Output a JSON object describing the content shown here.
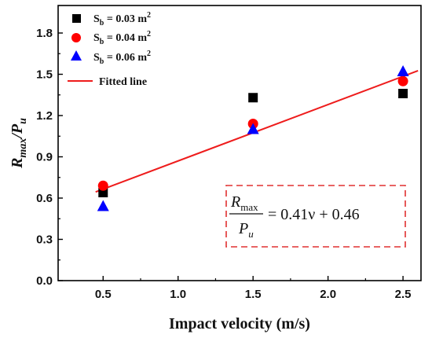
{
  "chart_data": {
    "type": "scatter",
    "xlabel": "Impact velocity (m/s)",
    "ylabel": {
      "main": "R",
      "sub1": "max",
      "slash": "/P",
      "sub2": "u"
    },
    "xlim": [
      0.2,
      2.62
    ],
    "ylim": [
      0.0,
      2.0
    ],
    "x_ticks": [
      0.5,
      1.0,
      1.5,
      2.0,
      2.5
    ],
    "x_tick_labels": [
      "0.5",
      "1.0",
      "1.5",
      "2.0",
      "2.5"
    ],
    "y_ticks": [
      0.0,
      0.3,
      0.6,
      0.9,
      1.2,
      1.5,
      1.8
    ],
    "y_tick_labels": [
      "0.0",
      "0.3",
      "0.6",
      "0.9",
      "1.2",
      "1.5",
      "1.8"
    ],
    "grid": false,
    "legend_position": "top-left",
    "series": [
      {
        "name_main": "S",
        "name_sub": "b",
        "name_rest": " = 0.03 m",
        "name_sup": "2",
        "marker": "square",
        "color": "#000000",
        "x": [
          0.5,
          1.5,
          2.5
        ],
        "y": [
          0.64,
          1.33,
          1.36
        ]
      },
      {
        "name_main": "S",
        "name_sub": "b",
        "name_rest": " = 0.04 m",
        "name_sup": "2",
        "marker": "circle",
        "color": "#ff0000",
        "x": [
          0.5,
          1.5,
          2.5
        ],
        "y": [
          0.69,
          1.14,
          1.45
        ]
      },
      {
        "name_main": "S",
        "name_sub": "b",
        "name_rest": " = 0.06 m",
        "name_sup": "2",
        "marker": "triangle",
        "color": "#0000ff",
        "x": [
          0.5,
          1.5,
          2.5
        ],
        "y": [
          0.54,
          1.1,
          1.52
        ]
      }
    ],
    "fit": {
      "name": "Fitted line",
      "color": "#ee1c1c",
      "x": [
        0.45,
        2.6
      ],
      "slope": 0.41,
      "intercept": 0.46
    },
    "annotation": {
      "num_main": "R",
      "num_sub": "max",
      "den_main": "P",
      "den_sub": "u",
      "rhs": "= 0.41ν + 0.46",
      "box_color": "#e03030"
    }
  }
}
